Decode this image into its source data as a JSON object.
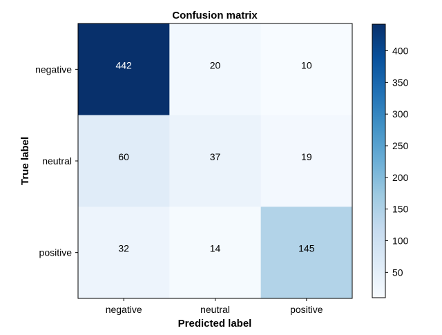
{
  "chart_data": {
    "type": "heatmap",
    "title": "Confusion matrix",
    "xlabel": "Predicted label",
    "ylabel": "True label",
    "x_categories": [
      "negative",
      "neutral",
      "positive"
    ],
    "y_categories": [
      "negative",
      "neutral",
      "positive"
    ],
    "values": [
      [
        442,
        20,
        10
      ],
      [
        60,
        37,
        19
      ],
      [
        32,
        14,
        145
      ]
    ],
    "colormap": "Blues",
    "color_range": [
      10,
      442
    ],
    "colorbar_ticks": [
      50,
      100,
      150,
      200,
      250,
      300,
      350,
      400
    ],
    "grid": false,
    "colors": {
      "cmap_low": "#f7fbff",
      "cmap_high": "#08306b",
      "text_dark": "#000000",
      "text_light": "#ffffff"
    }
  }
}
